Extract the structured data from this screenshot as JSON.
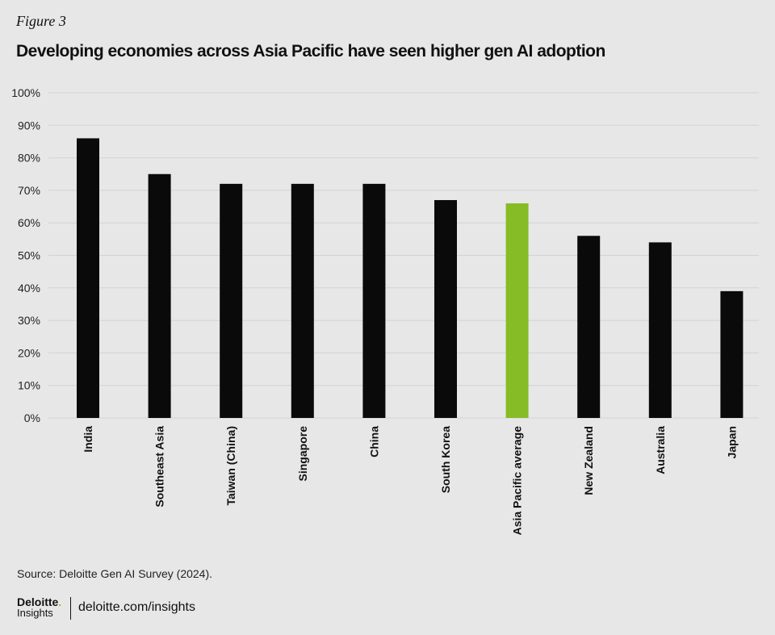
{
  "figure_label": "Figure 3",
  "title": "Developing economies across Asia Pacific have seen higher gen AI adoption",
  "source": "Source: Deloitte Gen AI Survey (2024).",
  "logo": {
    "name": "Deloitte",
    "sub": "Insights"
  },
  "url": "deloitte.com/insights",
  "colors": {
    "bar": "#0a0a0a",
    "highlight": "#86bc25",
    "background": "#e7e7e8",
    "grid": "#d3d3d5"
  },
  "chart_data": {
    "type": "bar",
    "categories": [
      "India",
      "Southeast Asia",
      "Taiwan (China)",
      "Singapore",
      "China",
      "South Korea",
      "Asia Pacific average",
      "New Zealand",
      "Australia",
      "Japan"
    ],
    "values": [
      86,
      75,
      72,
      72,
      72,
      67,
      66,
      56,
      54,
      39
    ],
    "highlight_category": "Asia Pacific average",
    "ylim": [
      0,
      100
    ],
    "yticks": [
      "0%",
      "10%",
      "20%",
      "30%",
      "40%",
      "50%",
      "60%",
      "70%",
      "80%",
      "90%",
      "100%"
    ],
    "grid": true,
    "xlabel": "",
    "ylabel": ""
  }
}
